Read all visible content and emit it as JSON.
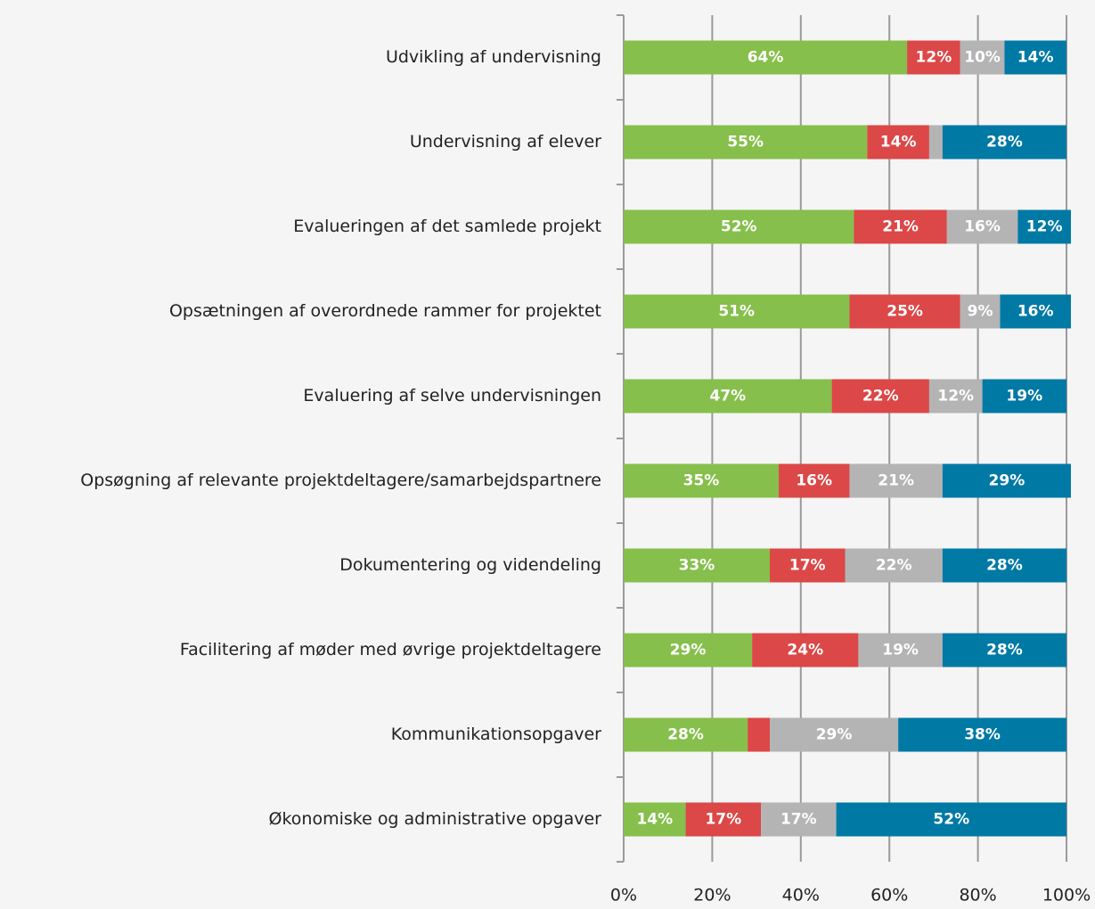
{
  "chart_data": {
    "type": "stacked-barh",
    "categories": [
      "Udvikling af undervisning",
      "Undervisning af elever",
      "Evalueringen af det samlede projekt",
      "Opsætningen af overordnede rammer for projektet",
      "Evaluering af selve undervisningen",
      "Opsøgning af relevante projektdeltagere/samarbejdspartnere",
      "Dokumentering og videndeling",
      "Facilitering af møder med øvrige projektdeltagere",
      "Kommunikationsopgaver",
      "Økonomiske og administrative opgaver"
    ],
    "series": [
      {
        "color": "#86bf4b",
        "values": [
          64,
          55,
          52,
          51,
          47,
          35,
          33,
          29,
          28,
          14
        ],
        "value_labels": [
          "64%",
          "55%",
          "52%",
          "51%",
          "47%",
          "35%",
          "33%",
          "29%",
          "28%",
          "14%"
        ]
      },
      {
        "color": "#dc4747",
        "values": [
          12,
          14,
          21,
          25,
          22,
          16,
          17,
          24,
          5,
          17
        ],
        "value_labels": [
          "12%",
          "14%",
          "21%",
          "25%",
          "22%",
          "16%",
          "17%",
          "24%",
          null,
          "17%"
        ]
      },
      {
        "color": "#b4b4b4",
        "values": [
          10,
          3,
          16,
          9,
          12,
          21,
          22,
          19,
          29,
          17
        ],
        "value_labels": [
          "10%",
          null,
          "16%",
          "9%",
          "12%",
          "21%",
          "22%",
          "19%",
          "29%",
          "17%"
        ]
      },
      {
        "color": "#0079a5",
        "values": [
          14,
          28,
          12,
          16,
          19,
          29,
          28,
          28,
          38,
          52
        ],
        "value_labels": [
          "14%",
          "28%",
          "12%",
          "16%",
          "19%",
          "29%",
          "28%",
          "28%",
          "38%",
          "52%"
        ]
      }
    ],
    "xlim": [
      0,
      100
    ],
    "xticks": [
      {
        "value": 0,
        "label": "0%"
      },
      {
        "value": 20,
        "label": "20%"
      },
      {
        "value": 40,
        "label": "40%"
      },
      {
        "value": 60,
        "label": "60%"
      },
      {
        "value": 80,
        "label": "80%"
      },
      {
        "value": 100,
        "label": "100%"
      }
    ],
    "grid": true
  }
}
